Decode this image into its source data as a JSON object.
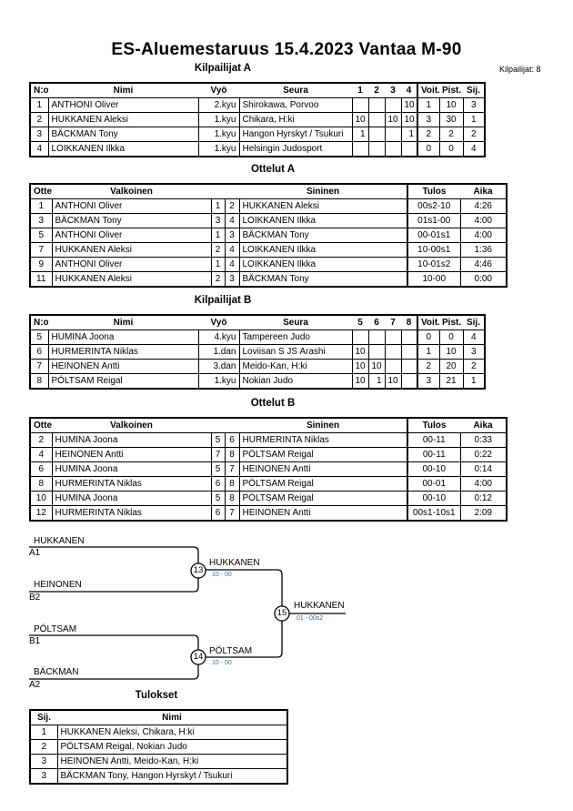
{
  "title": "ES-Aluemestaruus  15.4.2023  Vantaa   M-90",
  "competitor_count": "Kilpailijat: 8",
  "pool_a": {
    "title": "Kilpailijat A",
    "headers": [
      "N:o",
      "Nimi",
      "Vyö",
      "Seura",
      "1",
      "2",
      "3",
      "4",
      "Voit.",
      "Pist.",
      "Sij."
    ],
    "rows": [
      [
        "1",
        "ANTHONI Oliver",
        "2.kyu",
        "Shirokawa, Porvoo",
        "",
        "",
        "",
        "10",
        "1",
        "10",
        "3"
      ],
      [
        "2",
        "HUKKANEN Aleksi",
        "1.kyu",
        "Chikara, H:ki",
        "10",
        "",
        "10",
        "10",
        "3",
        "30",
        "1"
      ],
      [
        "3",
        "BÄCKMAN Tony",
        "1.kyu",
        "Hangon Hyrskyt / Tsukuri",
        "1",
        "",
        "",
        "1",
        "2",
        "2",
        "2"
      ],
      [
        "4",
        "LOIKKANEN Ilkka",
        "1.kyu",
        "Helsingin Judosport",
        "",
        "",
        "",
        "",
        "0",
        "0",
        "4"
      ]
    ]
  },
  "matches_a": {
    "title": "Ottelut A",
    "headers": [
      "Ottelu",
      "Valkoinen",
      "",
      "",
      "Sininen",
      "Tulos",
      "Aika"
    ],
    "rows": [
      [
        "1",
        "ANTHONI Oliver",
        "1",
        "2",
        "HUKKANEN Aleksi",
        "00s2-10",
        "4:26"
      ],
      [
        "3",
        "BÄCKMAN Tony",
        "3",
        "4",
        "LOIKKANEN Ilkka",
        "01s1-00",
        "4:00"
      ],
      [
        "5",
        "ANTHONI Oliver",
        "1",
        "3",
        "BÄCKMAN Tony",
        "00-01s1",
        "4:00"
      ],
      [
        "7",
        "HUKKANEN Aleksi",
        "2",
        "4",
        "LOIKKANEN Ilkka",
        "10-00s1",
        "1:36"
      ],
      [
        "9",
        "ANTHONI Oliver",
        "1",
        "4",
        "LOIKKANEN Ilkka",
        "10-01s2",
        "4:46"
      ],
      [
        "11",
        "HUKKANEN Aleksi",
        "2",
        "3",
        "BÄCKMAN Tony",
        "10-00",
        "0:00"
      ]
    ]
  },
  "pool_b": {
    "title": "Kilpailijat B",
    "headers": [
      "N:o",
      "Nimi",
      "Vyö",
      "Seura",
      "5",
      "6",
      "7",
      "8",
      "Voit.",
      "Pist.",
      "Sij."
    ],
    "rows": [
      [
        "5",
        "HUMINA Joona",
        "4.kyu",
        "Tampereen Judo",
        "",
        "",
        "",
        "",
        "0",
        "0",
        "4"
      ],
      [
        "6",
        "HURMERINTA Niklas",
        "1.dan",
        "Loviisan S JS Arashi",
        "10",
        "",
        "",
        "",
        "1",
        "10",
        "3"
      ],
      [
        "7",
        "HEINONEN Antti",
        "3.dan",
        "Meido-Kan, H:ki",
        "10",
        "10",
        "",
        "",
        "2",
        "20",
        "2"
      ],
      [
        "8",
        "PÖLTSAM Reigal",
        "1.kyu",
        "Nokian Judo",
        "10",
        "1",
        "10",
        "",
        "3",
        "21",
        "1"
      ]
    ]
  },
  "matches_b": {
    "title": "Ottelut B",
    "headers": [
      "Ottelu",
      "Valkoinen",
      "",
      "",
      "Sininen",
      "Tulos",
      "Aika"
    ],
    "rows": [
      [
        "2",
        "HUMINA Joona",
        "5",
        "6",
        "HURMERINTA Niklas",
        "00-11",
        "0:33"
      ],
      [
        "4",
        "HEINONEN Antti",
        "7",
        "8",
        "PÖLTSAM Reigal",
        "00-11",
        "0:22"
      ],
      [
        "6",
        "HUMINA Joona",
        "5",
        "7",
        "HEINONEN Antti",
        "00-10",
        "0:14"
      ],
      [
        "8",
        "HURMERINTA Niklas",
        "6",
        "8",
        "PÖLTSAM Reigal",
        "00-01",
        "4:00"
      ],
      [
        "10",
        "HUMINA Joona",
        "5",
        "8",
        "PÖLTSAM Reigal",
        "00-10",
        "0:12"
      ],
      [
        "12",
        "HURMERINTA Niklas",
        "6",
        "7",
        "HEINONEN Antti",
        "00s1-10s1",
        "2:09"
      ]
    ]
  },
  "bracket": {
    "semi1": {
      "top": "HUKKANEN",
      "top_seed": "A1",
      "bottom": "HEINONEN",
      "bottom_seed": "B2",
      "match": "13",
      "winner": "HUKKANEN",
      "score": "10 - 00"
    },
    "semi2": {
      "top": "PÖLTSAM",
      "top_seed": "B1",
      "bottom": "BÄCKMAN",
      "bottom_seed": "A2",
      "match": "14",
      "winner": "PÖLTSAM",
      "score": "10 - 00"
    },
    "final": {
      "match": "15",
      "winner": "HUKKANEN",
      "score": "01 - 00s2"
    }
  },
  "results": {
    "title": "Tulokset",
    "headers": [
      "Sij.",
      "Nimi"
    ],
    "rows": [
      [
        "1",
        "HUKKANEN Aleksi, Chikara, H:ki"
      ],
      [
        "2",
        "PÖLTSAM Reigal, Nokian Judo"
      ],
      [
        "3",
        "HEINONEN Antti, Meido-Kan, H:ki"
      ],
      [
        "3",
        "BÄCKMAN Tony, Hangon Hyrskyt / Tsukuri"
      ]
    ]
  },
  "colors": {
    "score_text": "#3a6aa8"
  }
}
